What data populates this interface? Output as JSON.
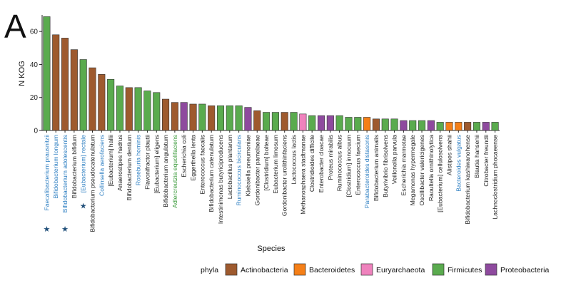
{
  "chart_data": {
    "type": "bar",
    "panel_label": "A",
    "title": "",
    "xlabel": "Species",
    "ylabel": "N KOG",
    "ylim": [
      0,
      70
    ],
    "yticks": [
      0,
      20,
      40,
      60
    ],
    "grid": false,
    "legend_position": "bottom-right",
    "legend_title": "phyla",
    "colors": {
      "Actinobacteria": "#9e5a2e",
      "Bacteroidetes": "#f57f17",
      "Euryarchaeota": "#ef82bd",
      "Firmicutes": "#5aab4e",
      "Proteobacteria": "#8e4a9e",
      "label_default": "#222222",
      "label_blue": "#2e7fc2",
      "label_green": "#3a9a3a",
      "star": "#1f4e79"
    },
    "legend": [
      "Actinobacteria",
      "Bacteroidetes",
      "Euryarchaeota",
      "Firmicutes",
      "Proteobacteria"
    ],
    "categories": [
      "Faecalibacterium prausnitzii",
      "Bifidobacterium longum",
      "Bifidobacterium adolescentis",
      "Bifidobacterium bifidum",
      "[Eubacterium] rectale",
      "Bifidobacterium pseudocatenulatum",
      "Collinsella aerofaciens",
      "[Eubacterium] hallii",
      "Anaerostipes hadrus",
      "Bifidobacterium dentium",
      "Roseburia hominis",
      "Flavonifractor plautii",
      "[Eubacterium] eligens",
      "Bifidobacterium angulatum",
      "Adlercreutzia equolifaciens",
      "Escherichia coli",
      "Eggerthella lenta",
      "Enterococcus faecalis",
      "Bifidobacterium catenulatum",
      "Intestinimonas butyriciproducens",
      "Lactobacillus plantarum",
      "Ruminococcus bicirculans",
      "Klebsiella pneumoniae",
      "Gordonibacter pamelaeae",
      "[Clostridium] bolteae",
      "Eubacterium limosum",
      "Gordonibacter urolithinfaciens",
      "Lactococcus lactis",
      "Methanosphaera stadtmanae",
      "Clostridioides difficile",
      "Enterobacter cloacae",
      "Proteus mirabilis",
      "Ruminococcus albus",
      "[Clostridium] innocuum",
      "Enterococcus faecium",
      "Parabacteroides distasonis",
      "Bifidobacterium animalis",
      "Butyrivibrio fibrisolvens",
      "Veillonella parvula",
      "Escherichia marmotae",
      "Megamonas hypermegale",
      "Oscillibacter valericigenes",
      "Raoultella ornithinolytica",
      "[Eubacterium] cellulosolvens",
      "Alistipes shahii",
      "Bacteroides vulgatus",
      "Bifidobacterium kashiwanohense",
      "Blautia hansenii",
      "Citrobacter freundii",
      "Lachnoclostridium phocaeense"
    ],
    "values": [
      69,
      58,
      56,
      49,
      43,
      38,
      34,
      31,
      27,
      26,
      26,
      24,
      23,
      19,
      17,
      17,
      16,
      16,
      15,
      15,
      15,
      15,
      14,
      12,
      11,
      11,
      11,
      11,
      10,
      9,
      9,
      9,
      9,
      8,
      8,
      8,
      7,
      7,
      7,
      6,
      6,
      6,
      6,
      5,
      5,
      5,
      5,
      5,
      5,
      5
    ],
    "phyla": [
      "Firmicutes",
      "Actinobacteria",
      "Actinobacteria",
      "Actinobacteria",
      "Firmicutes",
      "Actinobacteria",
      "Actinobacteria",
      "Firmicutes",
      "Firmicutes",
      "Actinobacteria",
      "Firmicutes",
      "Firmicutes",
      "Firmicutes",
      "Actinobacteria",
      "Actinobacteria",
      "Proteobacteria",
      "Actinobacteria",
      "Firmicutes",
      "Actinobacteria",
      "Firmicutes",
      "Firmicutes",
      "Firmicutes",
      "Proteobacteria",
      "Actinobacteria",
      "Firmicutes",
      "Firmicutes",
      "Actinobacteria",
      "Firmicutes",
      "Euryarchaeota",
      "Firmicutes",
      "Proteobacteria",
      "Proteobacteria",
      "Firmicutes",
      "Firmicutes",
      "Firmicutes",
      "Bacteroidetes",
      "Actinobacteria",
      "Firmicutes",
      "Firmicutes",
      "Proteobacteria",
      "Firmicutes",
      "Firmicutes",
      "Proteobacteria",
      "Firmicutes",
      "Bacteroidetes",
      "Bacteroidetes",
      "Actinobacteria",
      "Firmicutes",
      "Proteobacteria",
      "Firmicutes"
    ],
    "label_colors": [
      "blue",
      "blue",
      "blue",
      "default",
      "blue",
      "default",
      "blue",
      "default",
      "default",
      "default",
      "blue",
      "default",
      "default",
      "default",
      "green",
      "default",
      "default",
      "default",
      "default",
      "default",
      "default",
      "blue",
      "default",
      "default",
      "default",
      "default",
      "default",
      "default",
      "default",
      "default",
      "default",
      "default",
      "default",
      "default",
      "default",
      "blue",
      "default",
      "default",
      "default",
      "default",
      "default",
      "default",
      "default",
      "default",
      "default",
      "blue",
      "default",
      "default",
      "default",
      "default"
    ],
    "starred": [
      "Faecalibacterium prausnitzii",
      "Bifidobacterium adolescentis",
      "[Eubacterium] rectale"
    ]
  }
}
